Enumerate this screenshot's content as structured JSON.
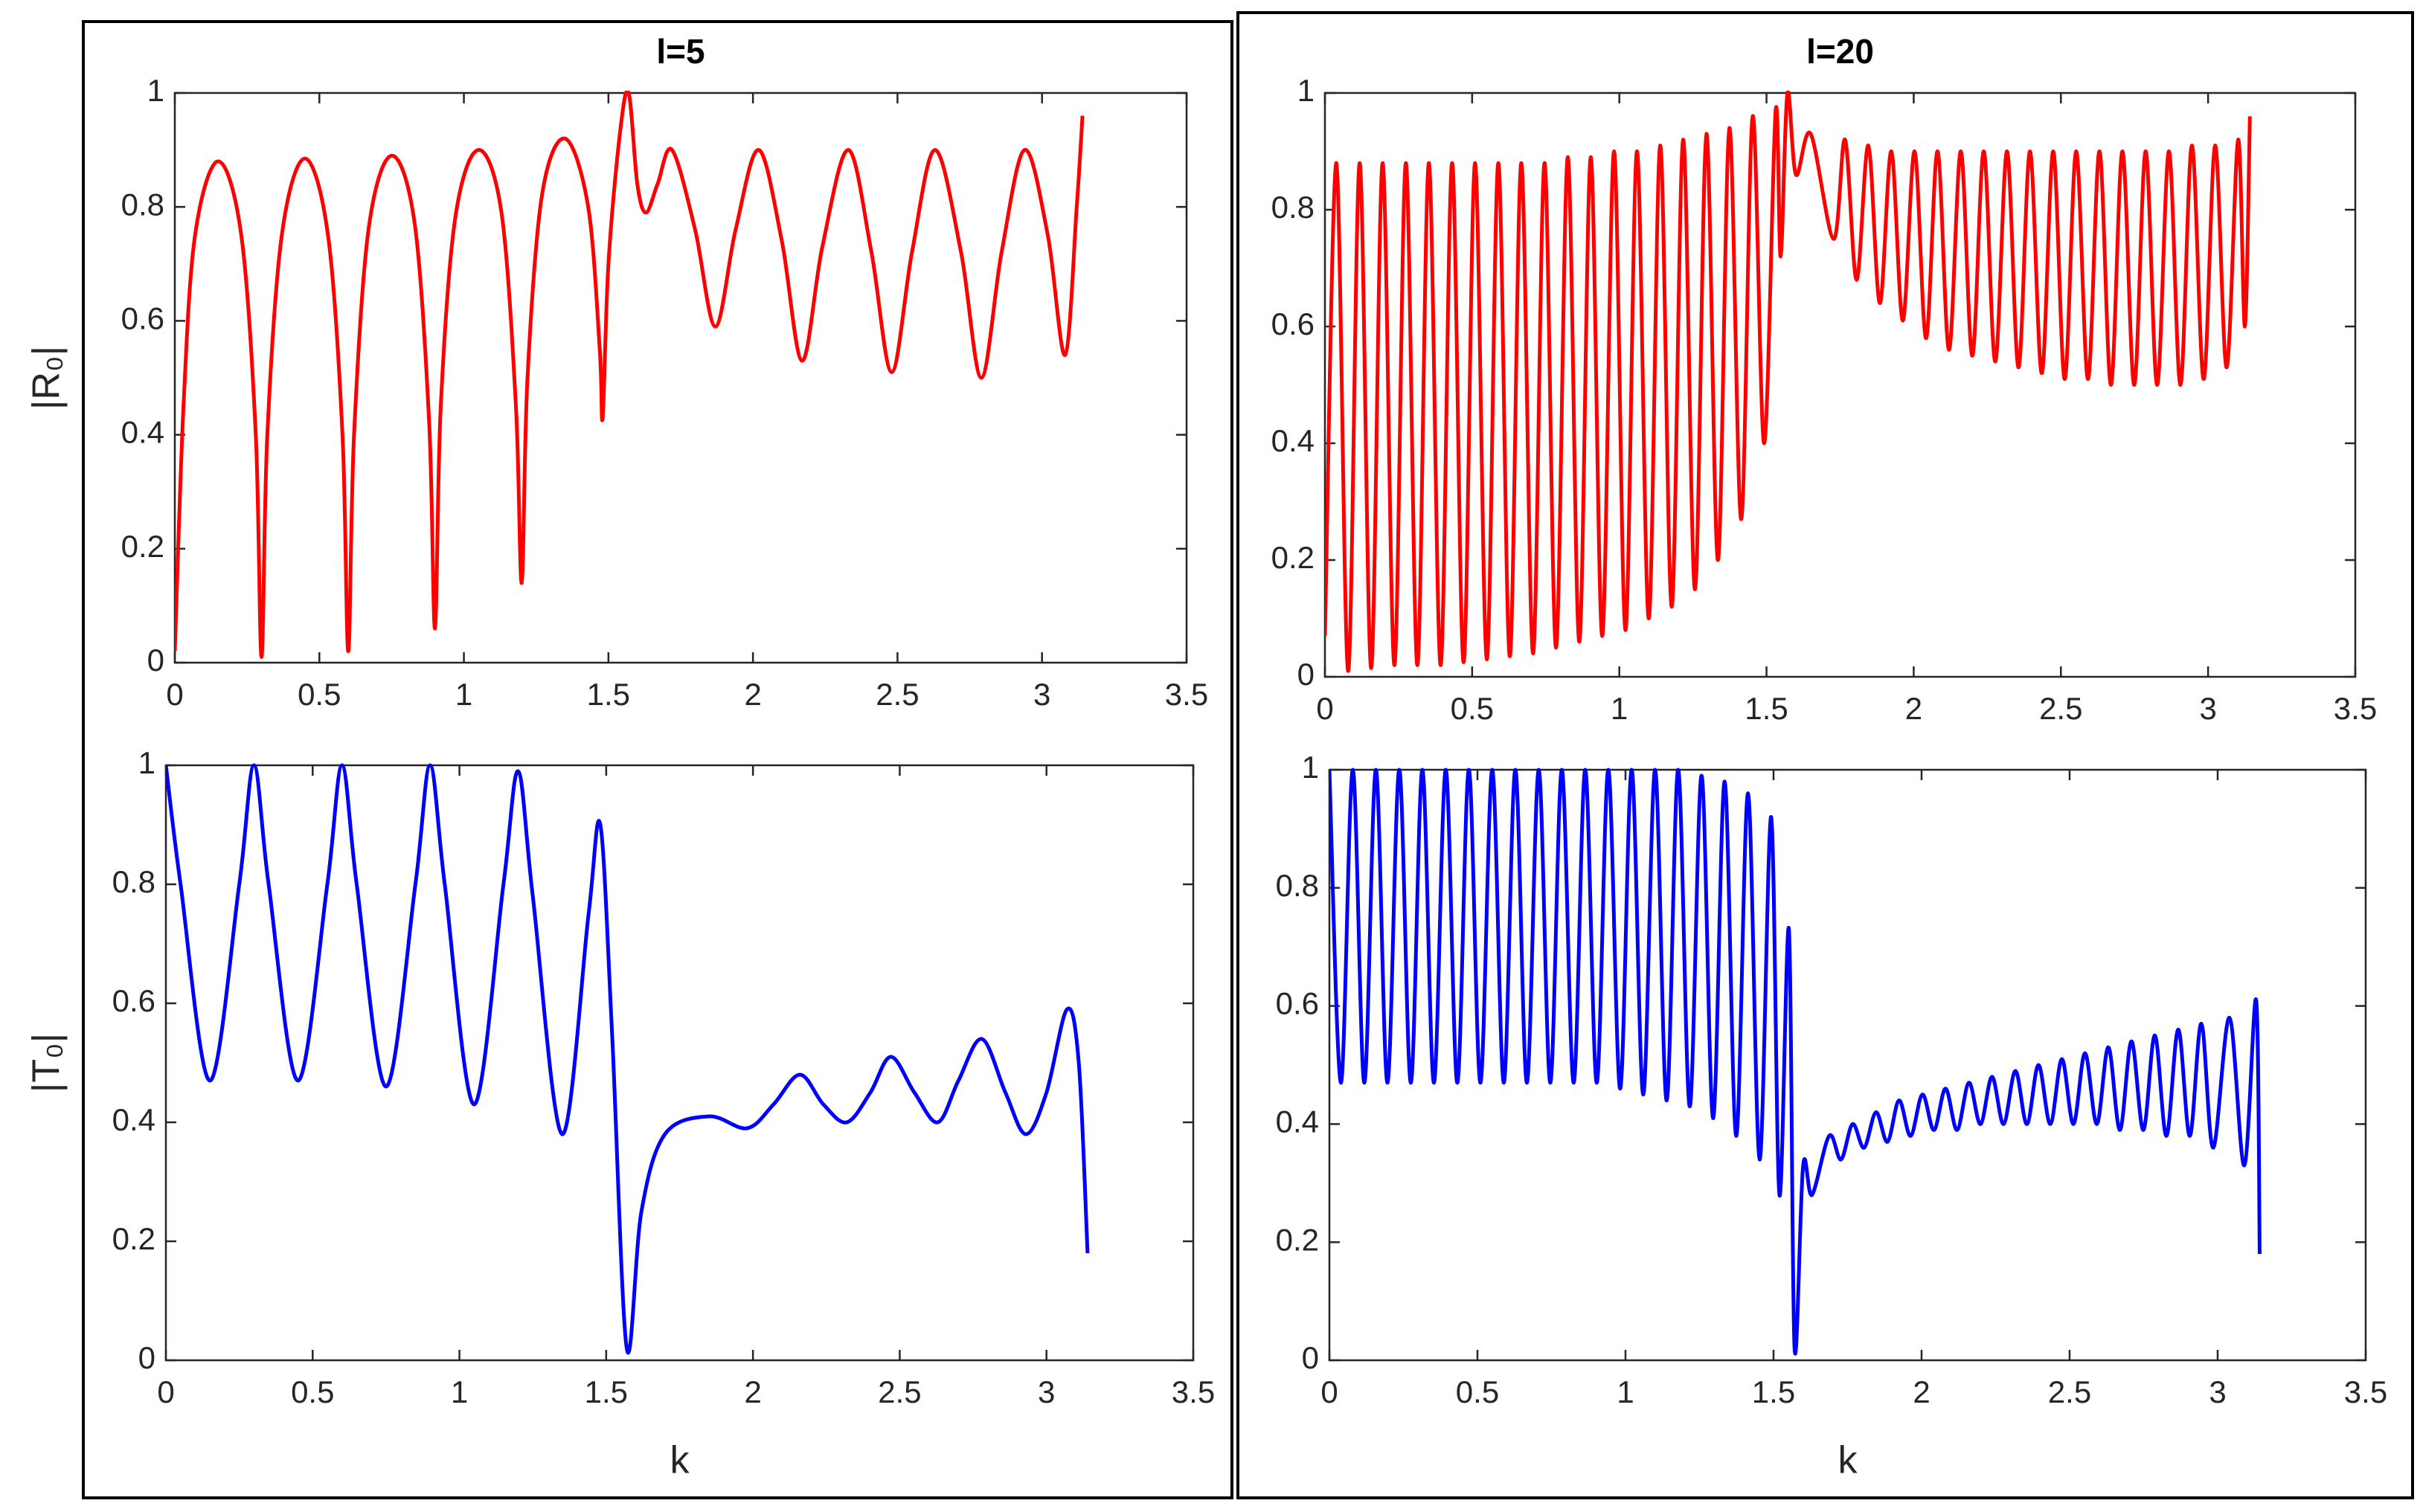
{
  "chart_data": [
    {
      "type": "line",
      "title": "l=5",
      "ylabel": "|R₀|",
      "x": [
        0,
        0.03,
        0.07,
        0.15,
        0.23,
        0.28,
        0.3,
        0.32,
        0.37,
        0.45,
        0.53,
        0.58,
        0.6,
        0.62,
        0.67,
        0.75,
        0.83,
        0.88,
        0.9,
        0.92,
        0.97,
        1.05,
        1.13,
        1.18,
        1.2,
        1.22,
        1.27,
        1.35,
        1.43,
        1.47,
        1.48,
        1.5,
        1.54,
        1.57,
        1.6,
        1.63,
        1.67,
        1.72,
        1.8,
        1.87,
        1.94,
        2.02,
        2.1,
        2.17,
        2.24,
        2.33,
        2.41,
        2.48,
        2.55,
        2.63,
        2.72,
        2.79,
        2.86,
        2.94,
        3.02,
        3.08,
        3.12,
        3.14
      ],
      "series": [
        {
          "color": "#ff0000",
          "values": [
            0.02,
            0.45,
            0.75,
            0.88,
            0.75,
            0.4,
            0.01,
            0.4,
            0.75,
            0.885,
            0.75,
            0.4,
            0.02,
            0.4,
            0.76,
            0.89,
            0.77,
            0.42,
            0.06,
            0.45,
            0.78,
            0.9,
            0.79,
            0.45,
            0.14,
            0.5,
            0.82,
            0.92,
            0.8,
            0.55,
            0.43,
            0.7,
            0.93,
            1,
            0.84,
            0.79,
            0.84,
            0.9,
            0.76,
            0.59,
            0.76,
            0.9,
            0.74,
            0.53,
            0.73,
            0.9,
            0.72,
            0.51,
            0.72,
            0.9,
            0.72,
            0.5,
            0.72,
            0.9,
            0.75,
            0.54,
            0.8,
            0.96
          ]
        }
      ],
      "xlim": [
        0,
        3.5
      ],
      "ylim": [
        0,
        1
      ],
      "xticks": [
        0,
        0.5,
        1,
        1.5,
        2,
        2.5,
        3,
        3.5
      ],
      "yticks": [
        0,
        0.2,
        0.4,
        0.6,
        0.8,
        1
      ]
    },
    {
      "type": "line",
      "title": "l=20",
      "x": [
        0,
        0.039,
        0.079,
        0.118,
        0.157,
        0.196,
        0.236,
        0.275,
        0.314,
        0.353,
        0.393,
        0.432,
        0.471,
        0.51,
        0.55,
        0.589,
        0.628,
        0.667,
        0.707,
        0.746,
        0.785,
        0.825,
        0.864,
        0.903,
        0.942,
        0.982,
        1.021,
        1.06,
        1.1,
        1.139,
        1.178,
        1.217,
        1.257,
        1.296,
        1.335,
        1.374,
        1.414,
        1.453,
        1.492,
        1.531,
        1.548,
        1.571,
        1.6,
        1.65,
        1.728,
        1.767,
        1.806,
        1.846,
        1.885,
        1.924,
        1.963,
        2.003,
        2.042,
        2.081,
        2.12,
        2.16,
        2.199,
        2.238,
        2.277,
        2.317,
        2.356,
        2.395,
        2.435,
        2.474,
        2.513,
        2.552,
        2.592,
        2.631,
        2.67,
        2.709,
        2.749,
        2.788,
        2.827,
        2.867,
        2.906,
        2.945,
        2.985,
        3.024,
        3.063,
        3.102,
        3.125,
        3.142
      ],
      "series": [
        {
          "color": "#ff0000",
          "values": [
            0.07,
            0.88,
            0.01,
            0.88,
            0.015,
            0.88,
            0.02,
            0.88,
            0.02,
            0.88,
            0.02,
            0.88,
            0.025,
            0.88,
            0.03,
            0.88,
            0.035,
            0.88,
            0.04,
            0.88,
            0.05,
            0.89,
            0.06,
            0.89,
            0.07,
            0.9,
            0.08,
            0.9,
            0.1,
            0.91,
            0.12,
            0.92,
            0.15,
            0.93,
            0.2,
            0.94,
            0.27,
            0.96,
            0.4,
            0.97,
            0.72,
            1,
            0.86,
            0.93,
            0.75,
            0.92,
            0.68,
            0.91,
            0.64,
            0.9,
            0.61,
            0.9,
            0.58,
            0.9,
            0.56,
            0.9,
            0.55,
            0.9,
            0.54,
            0.9,
            0.53,
            0.9,
            0.52,
            0.9,
            0.51,
            0.9,
            0.51,
            0.9,
            0.5,
            0.9,
            0.5,
            0.9,
            0.5,
            0.9,
            0.5,
            0.91,
            0.51,
            0.91,
            0.53,
            0.92,
            0.6,
            0.96
          ]
        }
      ],
      "xlim": [
        0,
        3.5
      ],
      "ylim": [
        0,
        1
      ],
      "xticks": [
        0,
        0.5,
        1,
        1.5,
        2,
        2.5,
        3,
        3.5
      ],
      "yticks": [
        0,
        0.2,
        0.4,
        0.6,
        0.8,
        1
      ]
    },
    {
      "type": "line",
      "ylabel": "|T₀|",
      "xlabel": "k",
      "x": [
        0,
        0.05,
        0.15,
        0.25,
        0.3,
        0.35,
        0.45,
        0.55,
        0.6,
        0.65,
        0.75,
        0.85,
        0.9,
        0.95,
        1.05,
        1.15,
        1.2,
        1.25,
        1.35,
        1.44,
        1.48,
        1.52,
        1.57,
        1.62,
        1.7,
        1.85,
        1.98,
        2.07,
        2.16,
        2.24,
        2.32,
        2.4,
        2.47,
        2.55,
        2.63,
        2.7,
        2.78,
        2.86,
        2.93,
        3.0,
        3.07,
        3.11,
        3.14
      ],
      "series": [
        {
          "color": "#0000ff",
          "values": [
            1,
            0.8,
            0.47,
            0.8,
            1,
            0.8,
            0.47,
            0.8,
            1,
            0.8,
            0.46,
            0.8,
            1,
            0.8,
            0.43,
            0.8,
            0.99,
            0.78,
            0.38,
            0.75,
            0.9,
            0.55,
            0.02,
            0.25,
            0.38,
            0.41,
            0.39,
            0.43,
            0.48,
            0.43,
            0.4,
            0.45,
            0.51,
            0.45,
            0.4,
            0.47,
            0.54,
            0.45,
            0.38,
            0.45,
            0.59,
            0.5,
            0.18
          ]
        }
      ],
      "xlim": [
        0,
        3.5
      ],
      "ylim": [
        0,
        1
      ],
      "xticks": [
        0,
        0.5,
        1,
        1.5,
        2,
        2.5,
        3,
        3.5
      ],
      "yticks": [
        0,
        0.2,
        0.4,
        0.6,
        0.8,
        1
      ]
    },
    {
      "type": "line",
      "xlabel": "k",
      "x": [
        0,
        0.039,
        0.079,
        0.118,
        0.157,
        0.196,
        0.236,
        0.275,
        0.314,
        0.353,
        0.393,
        0.432,
        0.471,
        0.51,
        0.55,
        0.589,
        0.628,
        0.667,
        0.707,
        0.746,
        0.785,
        0.825,
        0.864,
        0.903,
        0.942,
        0.982,
        1.021,
        1.06,
        1.1,
        1.139,
        1.178,
        1.217,
        1.257,
        1.296,
        1.335,
        1.374,
        1.414,
        1.453,
        1.492,
        1.52,
        1.552,
        1.571,
        1.6,
        1.63,
        1.688,
        1.728,
        1.767,
        1.806,
        1.846,
        1.885,
        1.924,
        1.963,
        2.003,
        2.042,
        2.081,
        2.12,
        2.16,
        2.199,
        2.238,
        2.277,
        2.317,
        2.356,
        2.395,
        2.435,
        2.474,
        2.513,
        2.552,
        2.592,
        2.631,
        2.67,
        2.709,
        2.749,
        2.788,
        2.827,
        2.867,
        2.906,
        2.945,
        2.985,
        3.04,
        3.09,
        3.13,
        3.142
      ],
      "series": [
        {
          "color": "#0000ff",
          "values": [
            1,
            0.47,
            1,
            0.47,
            1,
            0.47,
            1,
            0.47,
            1,
            0.47,
            1,
            0.47,
            1,
            0.47,
            1,
            0.47,
            1,
            0.47,
            1,
            0.47,
            1,
            0.47,
            1,
            0.47,
            1,
            0.46,
            1,
            0.45,
            1,
            0.44,
            1,
            0.43,
            0.99,
            0.41,
            0.98,
            0.38,
            0.96,
            0.34,
            0.92,
            0.28,
            0.73,
            0.02,
            0.33,
            0.28,
            0.38,
            0.34,
            0.4,
            0.36,
            0.42,
            0.37,
            0.44,
            0.38,
            0.45,
            0.39,
            0.46,
            0.39,
            0.47,
            0.4,
            0.48,
            0.4,
            0.49,
            0.4,
            0.5,
            0.4,
            0.51,
            0.4,
            0.52,
            0.4,
            0.53,
            0.39,
            0.54,
            0.39,
            0.55,
            0.38,
            0.56,
            0.38,
            0.57,
            0.36,
            0.58,
            0.33,
            0.61,
            0.18
          ]
        }
      ],
      "xlim": [
        0,
        3.5
      ],
      "ylim": [
        0,
        1
      ],
      "xticks": [
        0,
        0.5,
        1,
        1.5,
        2,
        2.5,
        3,
        3.5
      ],
      "yticks": [
        0,
        0.2,
        0.4,
        0.6,
        0.8,
        1
      ]
    }
  ]
}
